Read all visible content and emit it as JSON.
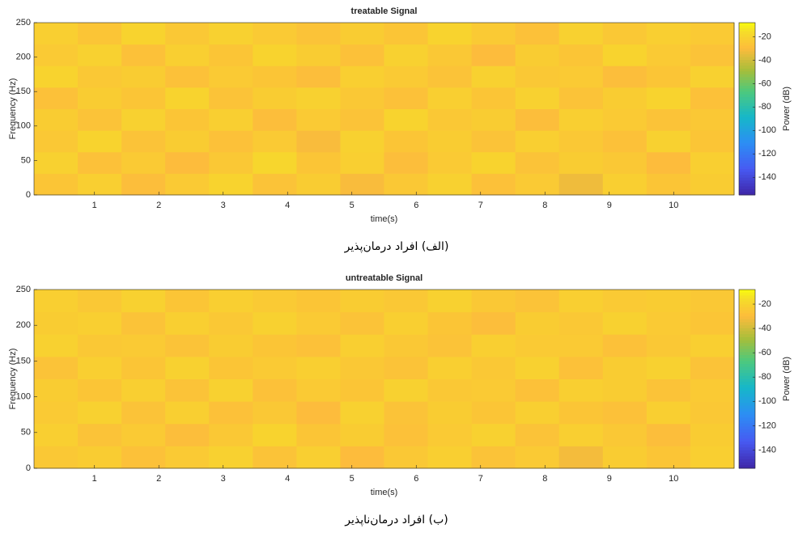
{
  "chart_data": [
    {
      "type": "heatmap",
      "title": "treatable Signal",
      "x_label": "time(s)",
      "y_label": "Frequency (Hz)",
      "caption": "(الف) افراد درمان‌پذیر",
      "xlim": [
        0.06,
        10.94
      ],
      "ylim": [
        0,
        250
      ],
      "xticks": [
        1,
        2,
        3,
        4,
        5,
        6,
        7,
        8,
        9,
        10
      ],
      "yticks": [
        0,
        50,
        100,
        150,
        200,
        250
      ],
      "x": [
        0.4,
        1.08,
        1.76,
        2.44,
        3.12,
        3.8,
        4.48,
        5.16,
        5.84,
        6.52,
        7.2,
        7.88,
        8.56,
        9.24,
        9.92,
        10.6
      ],
      "y": [
        15.625,
        46.875,
        78.125,
        109.375,
        140.625,
        171.875,
        203.125,
        234.375
      ],
      "z": [
        [
          -26,
          -22,
          -29,
          -24,
          -20,
          -27,
          -23,
          -31,
          -25,
          -21,
          -28,
          -24,
          -33,
          -22,
          -26,
          -23
        ],
        [
          -21,
          -28,
          -24,
          -30,
          -25,
          -19,
          -26,
          -22,
          -29,
          -24,
          -20,
          -27,
          -23,
          -25,
          -30,
          -22
        ],
        [
          -25,
          -20,
          -27,
          -23,
          -28,
          -24,
          -31,
          -21,
          -26,
          -23,
          -27,
          -22,
          -25,
          -28,
          -21,
          -26
        ],
        [
          -23,
          -27,
          -21,
          -26,
          -22,
          -29,
          -24,
          -27,
          -20,
          -25,
          -23,
          -29,
          -22,
          -24,
          -27,
          -25
        ],
        [
          -28,
          -23,
          -26,
          -20,
          -27,
          -23,
          -21,
          -25,
          -28,
          -22,
          -26,
          -21,
          -27,
          -23,
          -20,
          -28
        ],
        [
          -20,
          -25,
          -23,
          -28,
          -24,
          -26,
          -29,
          -22,
          -24,
          -27,
          -21,
          -25,
          -24,
          -29,
          -26,
          -21
        ],
        [
          -24,
          -21,
          -28,
          -22,
          -26,
          -20,
          -23,
          -28,
          -21,
          -25,
          -30,
          -23,
          -26,
          -20,
          -24,
          -27
        ],
        [
          -22,
          -26,
          -20,
          -25,
          -21,
          -24,
          -27,
          -23,
          -26,
          -20,
          -24,
          -28,
          -21,
          -25,
          -22,
          -24
        ]
      ],
      "colormap": "parula",
      "colorbar": {
        "label": "Power (dB)",
        "clim": [
          -155,
          -8
        ],
        "ticks": [
          -20,
          -40,
          -60,
          -80,
          -100,
          -120,
          -140
        ]
      }
    },
    {
      "type": "heatmap",
      "title": "untreatable Signal",
      "x_label": "time(s)",
      "y_label": "Frequency (Hz)",
      "caption": "(ب) افراد درمان‌ناپذیر",
      "xlim": [
        0.06,
        10.94
      ],
      "ylim": [
        0,
        250
      ],
      "xticks": [
        1,
        2,
        3,
        4,
        5,
        6,
        7,
        8,
        9,
        10
      ],
      "yticks": [
        0,
        50,
        100,
        150,
        200,
        250
      ],
      "x": [
        0.4,
        1.08,
        1.76,
        2.44,
        3.12,
        3.8,
        4.48,
        5.16,
        5.84,
        6.52,
        7.2,
        7.88,
        8.56,
        9.24,
        9.92,
        10.6
      ],
      "y": [
        15.625,
        46.875,
        78.125,
        109.375,
        140.625,
        171.875,
        203.125,
        234.375
      ],
      "z": [
        [
          -25,
          -23,
          -28,
          -24,
          -21,
          -27,
          -22,
          -30,
          -25,
          -22,
          -27,
          -24,
          -32,
          -23,
          -26,
          -22
        ],
        [
          -22,
          -27,
          -24,
          -29,
          -25,
          -20,
          -26,
          -23,
          -28,
          -24,
          -21,
          -27,
          -22,
          -25,
          -29,
          -23
        ],
        [
          -24,
          -21,
          -27,
          -22,
          -28,
          -25,
          -30,
          -21,
          -27,
          -23,
          -26,
          -22,
          -26,
          -28,
          -22,
          -25
        ],
        [
          -23,
          -26,
          -22,
          -27,
          -21,
          -28,
          -24,
          -26,
          -21,
          -25,
          -24,
          -28,
          -22,
          -23,
          -27,
          -24
        ],
        [
          -27,
          -22,
          -26,
          -21,
          -26,
          -24,
          -22,
          -25,
          -27,
          -22,
          -25,
          -21,
          -28,
          -23,
          -21,
          -27
        ],
        [
          -21,
          -25,
          -24,
          -27,
          -23,
          -26,
          -28,
          -22,
          -25,
          -27,
          -22,
          -24,
          -24,
          -28,
          -25,
          -22
        ],
        [
          -23,
          -22,
          -27,
          -22,
          -25,
          -21,
          -24,
          -27,
          -22,
          -26,
          -29,
          -23,
          -25,
          -21,
          -24,
          -26
        ],
        [
          -22,
          -25,
          -21,
          -26,
          -22,
          -24,
          -26,
          -23,
          -25,
          -21,
          -25,
          -27,
          -22,
          -24,
          -23,
          -25
        ]
      ],
      "colormap": "parula",
      "colorbar": {
        "label": "Power (dB)",
        "clim": [
          -155,
          -8
        ],
        "ticks": [
          -20,
          -40,
          -60,
          -80,
          -100,
          -120,
          -140
        ]
      }
    }
  ]
}
